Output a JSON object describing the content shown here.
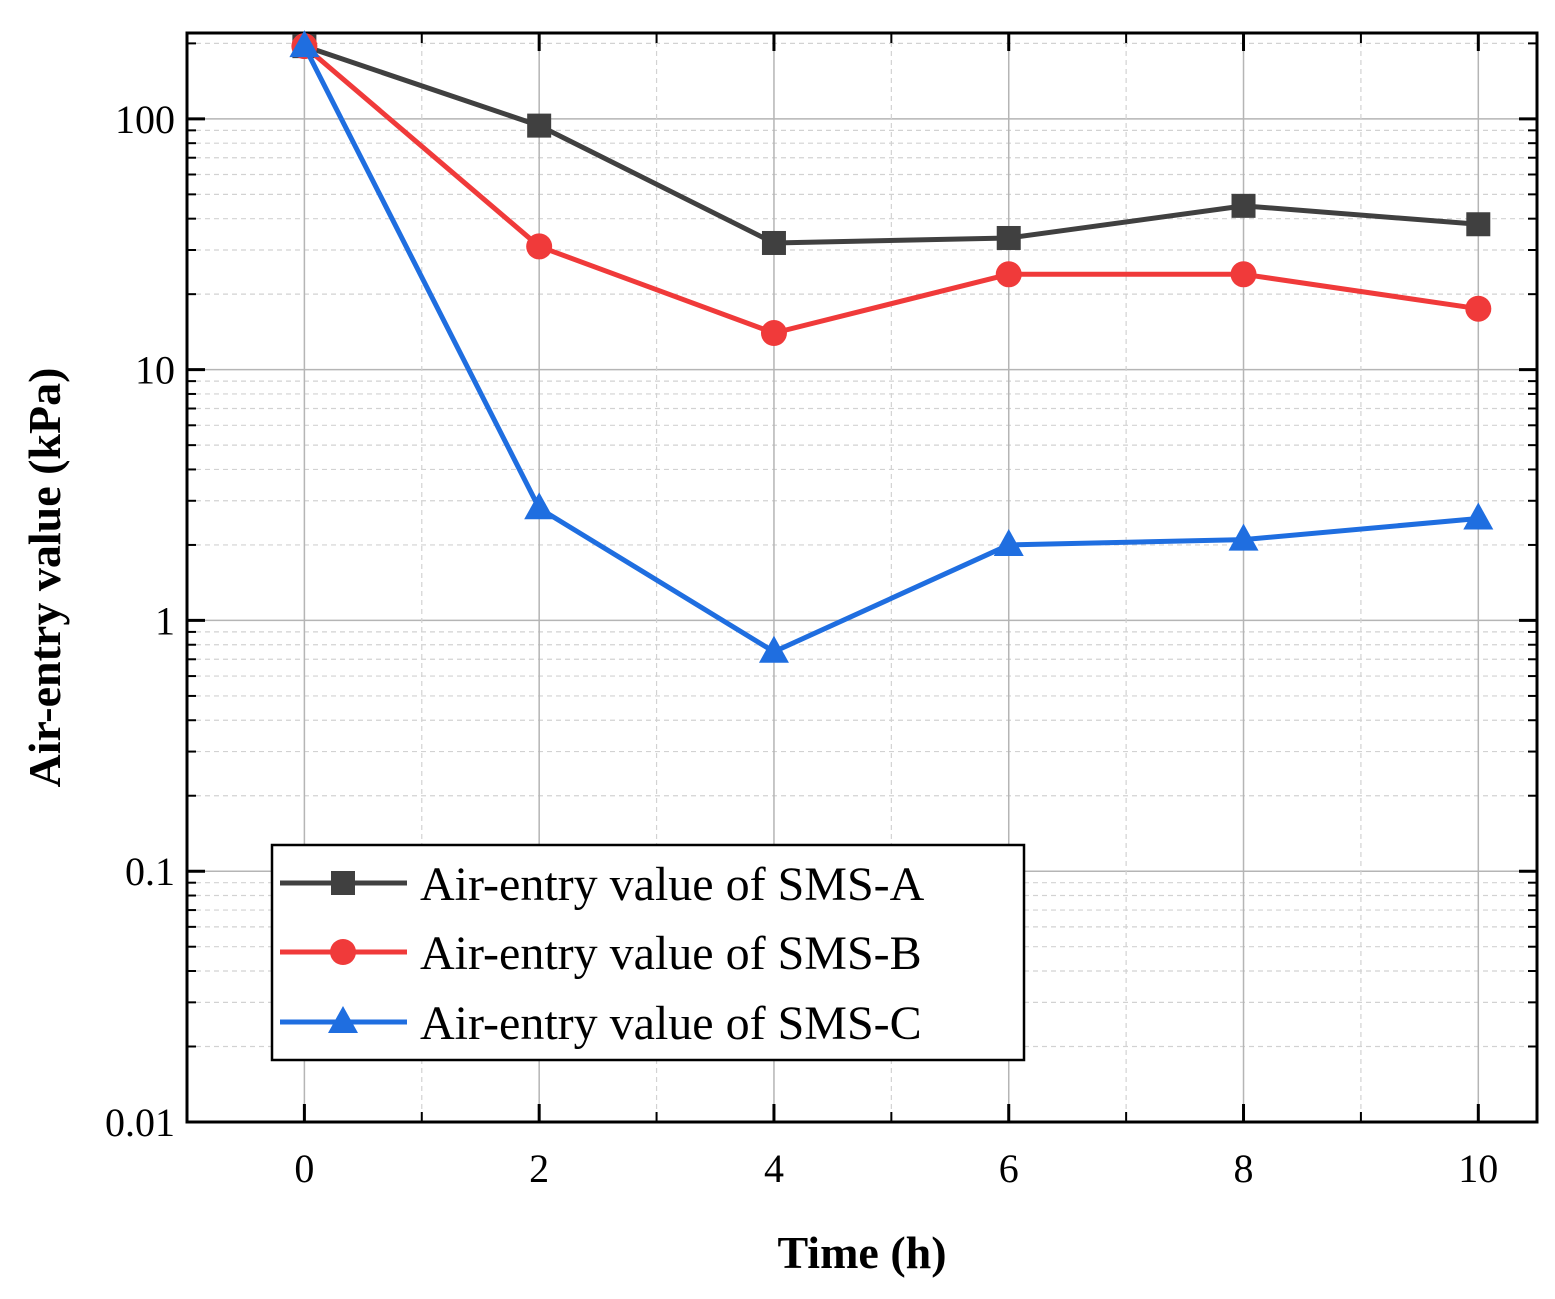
{
  "chart_data": {
    "type": "line",
    "title": "",
    "xlabel": "Time (h)",
    "ylabel": "Air-entry value (kPa)",
    "yscale": "log",
    "xlim": [
      -1,
      10.5
    ],
    "ylim": [
      0.01,
      220
    ],
    "x_ticks": [
      0,
      2,
      4,
      6,
      8,
      10
    ],
    "x_tick_labels": [
      "0",
      "2",
      "4",
      "6",
      "8",
      "10"
    ],
    "y_ticks": [
      0.01,
      0.1,
      1,
      10,
      100
    ],
    "y_tick_labels": [
      "0.01",
      "0.1",
      "1",
      "10",
      "100"
    ],
    "grid": true,
    "legend_position": "bottom-left",
    "x": [
      0,
      2,
      4,
      6,
      8,
      10
    ],
    "series": [
      {
        "name": "Air-entry value of SMS-A",
        "values": [
          195,
          94,
          32,
          33.5,
          45,
          38
        ],
        "color": "#404040",
        "marker": "square"
      },
      {
        "name": "Air-entry value of SMS-B",
        "values": [
          195,
          31,
          14,
          24,
          24,
          17.5
        ],
        "color": "#f03a3a",
        "marker": "circle"
      },
      {
        "name": "Air-entry value of SMS-C",
        "values": [
          195,
          2.8,
          0.75,
          2.0,
          2.1,
          2.55
        ],
        "color": "#1f6ee0",
        "marker": "triangle"
      }
    ]
  }
}
